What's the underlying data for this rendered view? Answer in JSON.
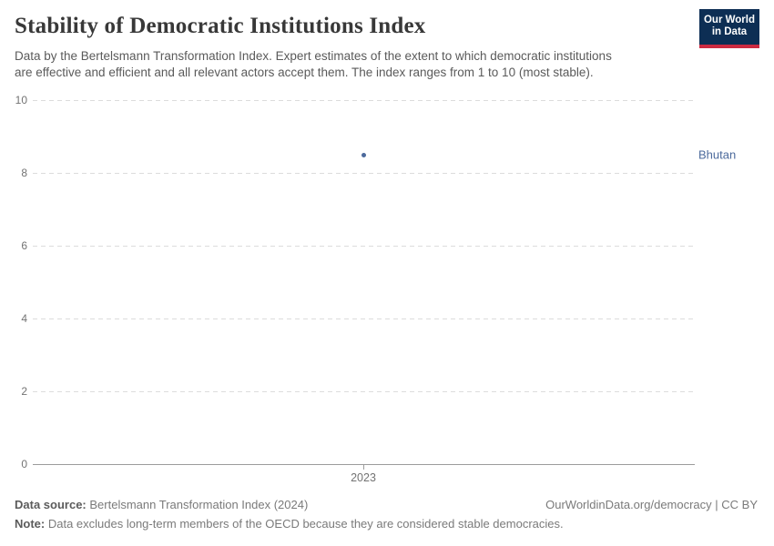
{
  "header": {
    "title": "Stability of Democratic Institutions Index",
    "subtitle_lines": [
      "Data by the Bertelsmann Transformation Index. Expert estimates of the extent to which democratic institutions",
      "are effective and efficient and all relevant actors accept them. The index ranges from 1 to 10 (most stable)."
    ]
  },
  "logo": {
    "line1": "Our World",
    "line2": "in Data",
    "bg_color": "#0d2e54",
    "bar_color": "#cc2a41"
  },
  "chart_data": {
    "type": "scatter",
    "x": [
      2023
    ],
    "xtick_labels": [
      "2023"
    ],
    "series": [
      {
        "name": "Bhutan",
        "values": [
          8.5
        ],
        "color": "#4c6a9c"
      }
    ],
    "title": "Stability of Democratic Institutions Index",
    "xlabel": "",
    "ylabel": "",
    "ylim": [
      0,
      10
    ],
    "yticks": [
      0,
      2,
      4,
      6,
      8,
      10
    ],
    "grid": "horizontal-dashed",
    "legend_position": "right-entity-label"
  },
  "footer": {
    "data_source_label": "Data source:",
    "data_source_value": "Bertelsmann Transformation Index (2024)",
    "link": "OurWorldinData.org/democracy | CC BY",
    "note_label": "Note:",
    "note_text": "Data excludes long-term members of the OECD because they are considered stable democracies."
  },
  "colors": {
    "accent": "#4c6a9c",
    "grid": "#dcdcdc",
    "axis": "#9c9c9c",
    "muted_text": "#737373"
  }
}
